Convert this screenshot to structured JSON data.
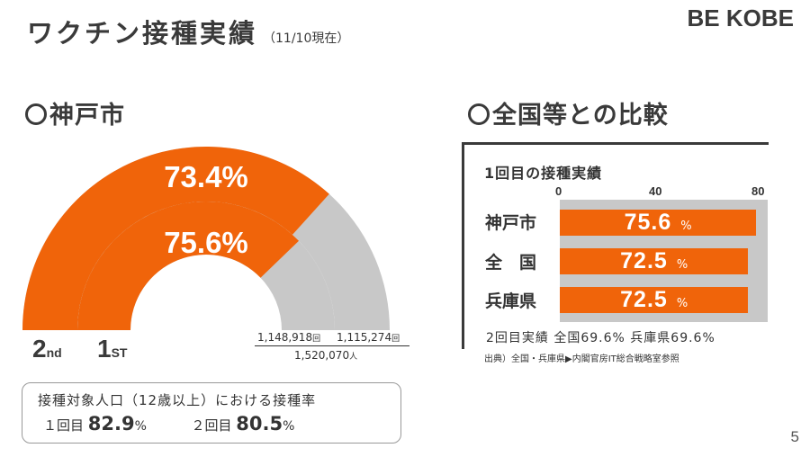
{
  "header": {
    "title": "ワクチン接種実績",
    "date_note": "（11/10現在）",
    "logo": "BE KOBE"
  },
  "kobe": {
    "section_title": "神戸市",
    "gauge": {
      "outer_percent": 73.4,
      "outer_label": "73.4%",
      "inner_percent": 75.6,
      "inner_label": "75.6%"
    },
    "dose_labels": {
      "second": "2",
      "second_suffix": "nd",
      "first": "1",
      "first_suffix": "ST"
    },
    "counts": {
      "first_count": "1,148,918",
      "second_count": "1,115,274",
      "count_unit": "回",
      "population": "1,520,070",
      "population_unit": "人"
    },
    "target_rate": {
      "title": "接種対象人口（12歳以上）における接種率",
      "first_label": "１回目",
      "first_value": "82.9",
      "second_label": "２回目",
      "second_value": "80.5",
      "unit": "%"
    }
  },
  "comparison": {
    "section_title": "全国等との比較",
    "chart_title": "1回目の接種実績",
    "second_dose_note": "2回目実績 全国69.6% 兵庫県69.6%",
    "source": "出典）全国・兵庫県▶内閣官房IT総合戦略室参照",
    "bar_unit": "%"
  },
  "chart_data": {
    "type": "bar",
    "orientation": "horizontal",
    "title": "1回目の接種実績",
    "categories": [
      "神戸市",
      "全　国",
      "兵庫県"
    ],
    "values": [
      75.6,
      72.5,
      72.5
    ],
    "value_labels": [
      "75.6",
      "72.5",
      "72.5"
    ],
    "xlim": [
      0,
      80
    ],
    "ticks": [
      "0",
      "40",
      "80"
    ],
    "grid": false
  },
  "colors": {
    "accent": "#f0640a",
    "remainder": "#c8c8c8",
    "text": "#333333"
  },
  "page_number": "5"
}
